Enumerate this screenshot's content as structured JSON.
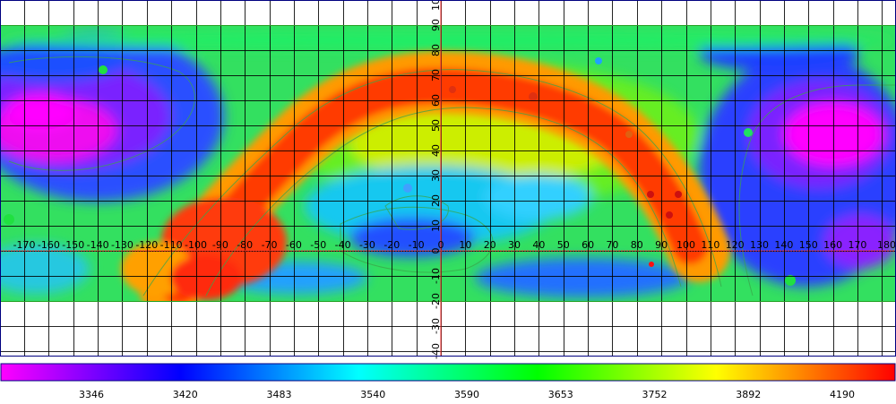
{
  "map": {
    "x_ticks": [
      "-170",
      "-160",
      "-150",
      "-140",
      "-130",
      "-120",
      "-110",
      "-100",
      "-90",
      "-80",
      "-70",
      "-60",
      "-50",
      "-40",
      "-30",
      "-20",
      "-10",
      "0",
      "10",
      "20",
      "30",
      "40",
      "50",
      "60",
      "70",
      "80",
      "90",
      "100",
      "110",
      "120",
      "130",
      "140",
      "150",
      "160",
      "170",
      "180"
    ],
    "y_ticks": [
      "90",
      "80",
      "70",
      "60",
      "50",
      "40",
      "30",
      "20",
      "10",
      "0",
      "-10",
      "-20",
      "-30",
      "-40"
    ],
    "x_axis_range": [
      -180,
      180
    ],
    "y_axis_range": [
      -45,
      100
    ],
    "data_extent_lat": [
      -20,
      90
    ],
    "grid": true,
    "colors": {
      "axis_line": "#ff3333",
      "grid": "#000000",
      "contour": "#3aa54a",
      "border": "#000080"
    }
  },
  "colorbar": {
    "labels": [
      "3346",
      "3420",
      "3483",
      "3540",
      "3590",
      "3653",
      "3752",
      "3892",
      "4190"
    ],
    "colors": [
      "#ff00ff",
      "#0000ff",
      "#00ffff",
      "#00ff00",
      "#ffff00",
      "#ff0000"
    ]
  }
}
